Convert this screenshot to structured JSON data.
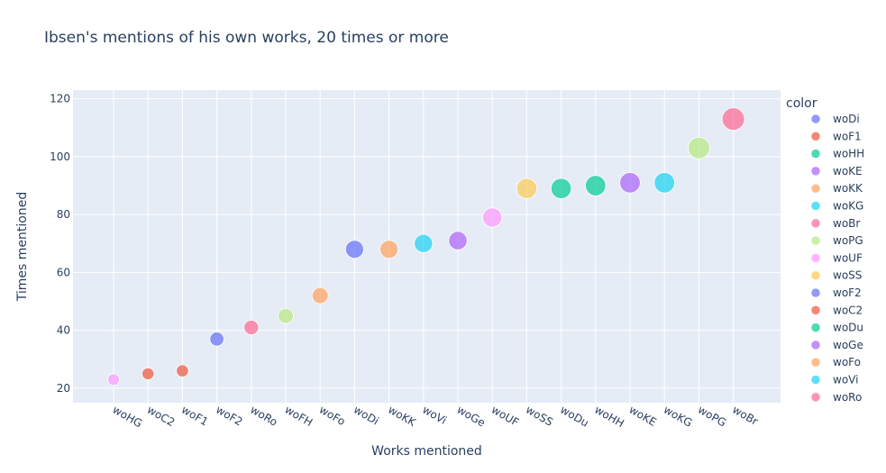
{
  "chart_data": {
    "type": "scatter",
    "title": "Ibsen's mentions of his own works, 20 times or more",
    "xlabel": "Works mentioned",
    "ylabel": "Times mentioned",
    "ylim": [
      15,
      123
    ],
    "yticks": [
      20,
      40,
      60,
      80,
      100,
      120
    ],
    "grid": true,
    "legend_title": "color",
    "legend_placement": "right",
    "categories": [
      "woHG",
      "woC2",
      "woF1",
      "woF2",
      "woRo",
      "woFH",
      "woFo",
      "woDi",
      "woKK",
      "woVi",
      "woGe",
      "woUF",
      "woSS",
      "woDu",
      "woHH",
      "woKE",
      "woKG",
      "woPG",
      "woBr"
    ],
    "points": [
      {
        "x": "woHG",
        "y": 23,
        "color": "woUF"
      },
      {
        "x": "woC2",
        "y": 25,
        "color": "woC2"
      },
      {
        "x": "woF1",
        "y": 26,
        "color": "woF1"
      },
      {
        "x": "woF2",
        "y": 37,
        "color": "woF2"
      },
      {
        "x": "woRo",
        "y": 41,
        "color": "woRo"
      },
      {
        "x": "woFH",
        "y": 45,
        "color": "woPG"
      },
      {
        "x": "woFo",
        "y": 52,
        "color": "woFo"
      },
      {
        "x": "woDi",
        "y": 68,
        "color": "woDi"
      },
      {
        "x": "woKK",
        "y": 68,
        "color": "woKK"
      },
      {
        "x": "woVi",
        "y": 70,
        "color": "woVi"
      },
      {
        "x": "woGe",
        "y": 71,
        "color": "woGe"
      },
      {
        "x": "woUF",
        "y": 79,
        "color": "woUF"
      },
      {
        "x": "woSS",
        "y": 89,
        "color": "woSS"
      },
      {
        "x": "woDu",
        "y": 89,
        "color": "woDu"
      },
      {
        "x": "woHH",
        "y": 90,
        "color": "woHH"
      },
      {
        "x": "woKE",
        "y": 91,
        "color": "woKE"
      },
      {
        "x": "woKG",
        "y": 91,
        "color": "woKG"
      },
      {
        "x": "woPG",
        "y": 103,
        "color": "woPG"
      },
      {
        "x": "woBr",
        "y": 113,
        "color": "woBr"
      }
    ],
    "legend": [
      {
        "name": "woDi",
        "color": "#636efa"
      },
      {
        "name": "woF1",
        "color": "#EF553B"
      },
      {
        "name": "woHH",
        "color": "#00cc96"
      },
      {
        "name": "woKE",
        "color": "#ab63fa"
      },
      {
        "name": "woKK",
        "color": "#FFA15A"
      },
      {
        "name": "woKG",
        "color": "#19d3f3"
      },
      {
        "name": "woBr",
        "color": "#FF6692"
      },
      {
        "name": "woPG",
        "color": "#B6E880"
      },
      {
        "name": "woUF",
        "color": "#FF97FF"
      },
      {
        "name": "woSS",
        "color": "#FECB52"
      },
      {
        "name": "woF2",
        "color": "#636efa"
      },
      {
        "name": "woC2",
        "color": "#EF553B"
      },
      {
        "name": "woDu",
        "color": "#00cc96"
      },
      {
        "name": "woGe",
        "color": "#ab63fa"
      },
      {
        "name": "woFo",
        "color": "#FFA15A"
      },
      {
        "name": "woVi",
        "color": "#19d3f3"
      },
      {
        "name": "woRo",
        "color": "#FF6692"
      }
    ]
  }
}
